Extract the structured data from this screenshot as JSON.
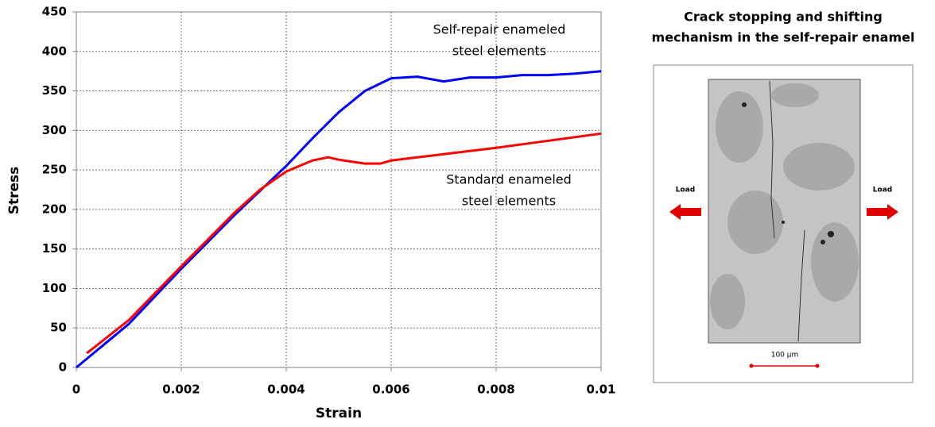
{
  "chart_data": {
    "type": "line",
    "xlabel": "Strain",
    "ylabel": "Stress",
    "xlim": [
      0,
      0.01
    ],
    "ylim": [
      0,
      450
    ],
    "xticks": [
      0,
      0.002,
      0.004,
      0.006,
      0.008,
      0.01
    ],
    "yticks": [
      0,
      50,
      100,
      150,
      200,
      250,
      300,
      350,
      400,
      450
    ],
    "grid": true,
    "annotations": [
      [
        "Self-repair enameled",
        "steel elements"
      ],
      [
        "Standard enameled",
        "steel elements"
      ]
    ],
    "series": [
      {
        "color": "#0000ff",
        "x": [
          0,
          0.001,
          0.002,
          0.003,
          0.004,
          0.0045,
          0.005,
          0.0055,
          0.006,
          0.0065,
          0.007,
          0.0075,
          0.008,
          0.0085,
          0.009,
          0.0095,
          0.01
        ],
        "values": [
          0,
          55,
          125,
          192,
          255,
          290,
          323,
          350,
          366,
          368,
          362,
          367,
          367,
          370,
          370,
          372,
          375
        ]
      },
      {
        "color": "#ff0000",
        "x": [
          0.0002,
          0.001,
          0.002,
          0.003,
          0.0035,
          0.004,
          0.0045,
          0.0048,
          0.005,
          0.0055,
          0.0058,
          0.006,
          0.007,
          0.008,
          0.009,
          0.01
        ],
        "values": [
          18,
          60,
          128,
          195,
          225,
          248,
          262,
          266,
          263,
          258,
          258,
          262,
          270,
          278,
          287,
          296
        ]
      }
    ]
  },
  "inset": {
    "title": [
      "Crack stopping and shifting",
      "mechanism in the self-repair enamel"
    ],
    "load_left": "Load",
    "load_right": "Load",
    "scale": "100 μm"
  }
}
